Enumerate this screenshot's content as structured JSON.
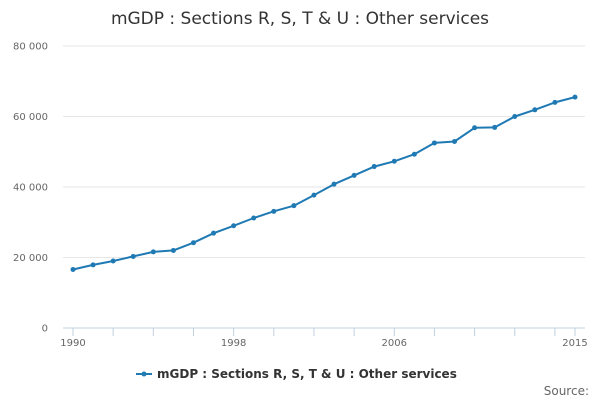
{
  "chart_data": {
    "type": "line",
    "title": "mGDP : Sections R, S, T & U : Other services",
    "xlabel": "",
    "ylabel": "",
    "x": [
      1990,
      1991,
      1992,
      1993,
      1994,
      1995,
      1996,
      1997,
      1998,
      1999,
      2000,
      2001,
      2002,
      2003,
      2004,
      2005,
      2006,
      2007,
      2008,
      2009,
      2010,
      2011,
      2012,
      2013,
      2014,
      2015
    ],
    "series": [
      {
        "name": "mGDP : Sections R, S, T & U : Other services",
        "color": "#1f7ab4",
        "values": [
          16600,
          17900,
          19000,
          20300,
          21600,
          22000,
          24200,
          26900,
          29000,
          31200,
          33100,
          34700,
          37700,
          40800,
          43300,
          45800,
          47300,
          49300,
          52500,
          52900,
          56800,
          56900,
          60000,
          61900,
          64000,
          65500
        ]
      }
    ],
    "ylim": [
      0,
      80000
    ],
    "xlim": [
      1990,
      2015
    ],
    "y_ticks": [
      0,
      20000,
      40000,
      60000,
      80000
    ],
    "y_tick_labels": [
      "0",
      "20 000",
      "40 000",
      "60 000",
      "80 000"
    ],
    "x_ticks": [
      1990,
      1998,
      2006,
      2015
    ],
    "x_tick_labels": [
      "1990",
      "1998",
      "2006",
      "2015"
    ],
    "grid": true,
    "legend": "bottom-center",
    "source_label": "Source:"
  }
}
